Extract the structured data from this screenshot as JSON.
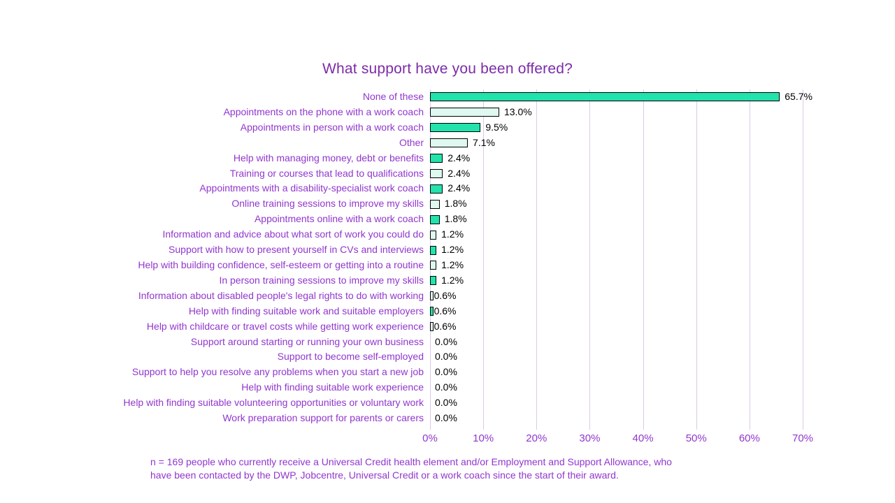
{
  "title": "What support have you been offered?",
  "footnote": {
    "line1": "n = 169 people who currently receive a Universal Credit health element and/or Employment and Support Allowance, who",
    "line2": "have been contacted by the DWP, Jobcentre, Universal Credit or a work coach since the start of their award."
  },
  "chart_data": {
    "type": "bar",
    "orientation": "horizontal",
    "title": "What support have you been offered?",
    "categories": [
      "None of these",
      "Appointments on the phone with a work coach",
      "Appointments in person with a work coach",
      "Other",
      "Help with managing money, debt or benefits",
      "Training or courses that lead to qualifications",
      "Appointments with a disability-specialist work coach",
      "Online training sessions to improve my skills",
      "Appointments online with a work coach",
      "Information and advice about what sort of work you could do",
      "Support with how to present yourself in CVs and interviews",
      "Help with building confidence, self-esteem or getting into a routine",
      "In person training sessions to improve my skills",
      "Information about disabled people's legal rights to do with working",
      "Help with finding suitable work and suitable employers",
      "Help with childcare or travel costs while getting work experience",
      "Support around starting or running your own business",
      "Support to become self-employed",
      "Support to help you resolve any problems when you start a new job",
      "Help with finding suitable work experience",
      "Help with finding suitable volunteering opportunities or voluntary work",
      "Work preparation support for parents or carers"
    ],
    "values": [
      65.7,
      13.0,
      9.5,
      7.1,
      2.4,
      2.4,
      2.4,
      1.8,
      1.8,
      1.2,
      1.2,
      1.2,
      1.2,
      0.6,
      0.6,
      0.6,
      0.0,
      0.0,
      0.0,
      0.0,
      0.0,
      0.0
    ],
    "value_labels": [
      "65.7%",
      "13.0%",
      "9.5%",
      "7.1%",
      "2.4%",
      "2.4%",
      "2.4%",
      "1.8%",
      "1.8%",
      "1.2%",
      "1.2%",
      "1.2%",
      "1.2%",
      "0.6%",
      "0.6%",
      "0.6%",
      "0.0%",
      "0.0%",
      "0.0%",
      "0.0%",
      "0.0%",
      "0.0%"
    ],
    "x_ticks": [
      "0%",
      "10%",
      "20%",
      "30%",
      "40%",
      "50%",
      "60%",
      "70%"
    ],
    "x_tick_values": [
      0,
      10,
      20,
      30,
      40,
      50,
      60,
      70
    ],
    "xlim": [
      0,
      70
    ],
    "grid": true,
    "legend": "none",
    "color_pattern": "alternating",
    "colors": {
      "bar_primary": "#22E3AC",
      "bar_secondary": "#DFF8F0",
      "bar_border": "#000000",
      "gridline": "#D9C9E9",
      "title_text": "#7C2BA8",
      "label_text": "#9136CE",
      "value_text": "#000000",
      "background": "#FFFFFF"
    }
  }
}
